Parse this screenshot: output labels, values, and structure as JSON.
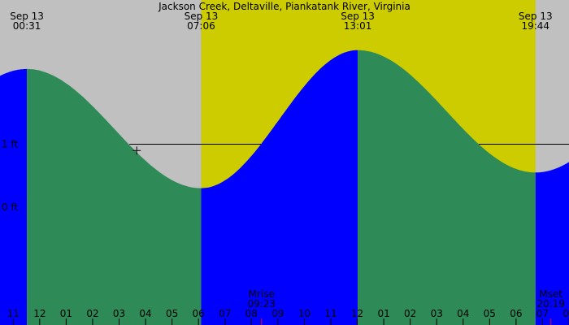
{
  "chart_data": {
    "type": "area",
    "title": "Jackson Creek, Deltaville, Piankatank River, Virginia",
    "time_axis": {
      "start_time": "23:30",
      "end_time": "21:00",
      "hour_ticks": [
        "11",
        "12",
        "01",
        "02",
        "03",
        "04",
        "05",
        "06",
        "07",
        "08",
        "09",
        "10",
        "11",
        "12",
        "01",
        "02",
        "03",
        "04",
        "05",
        "06",
        "07",
        "08",
        "09"
      ]
    },
    "y_axis": {
      "range_ft": [
        -1.7,
        3.3
      ],
      "tick_labels": [
        "1 ft",
        "0 ft"
      ],
      "reference_line_ft": 1.0
    },
    "daylight": {
      "start": "07:06",
      "end": "19:44"
    },
    "events": [
      {
        "date": "Sep 13",
        "time": "00:31",
        "height_ft": 2.2,
        "kind": "high"
      },
      {
        "date": "Sep 13",
        "time": "07:06",
        "height_ft": 0.3,
        "kind": "low"
      },
      {
        "date": "Sep 13",
        "time": "13:01",
        "height_ft": 2.5,
        "kind": "high"
      },
      {
        "date": "Sep 13",
        "time": "19:44",
        "height_ft": 0.55,
        "kind": "low"
      }
    ],
    "moon": {
      "rise": {
        "label": "Mrise",
        "time": "09:23"
      },
      "set": {
        "label": "Mset",
        "time": "20:19"
      }
    },
    "cursor": {
      "time": "04:40",
      "height_ft": 0.9
    },
    "colors": {
      "night": "#c0c0c0",
      "day": "#cccc00",
      "falling": "#2e8b57",
      "rising": "#0000ff",
      "moon_tick": "#ff0000",
      "text": "#000000"
    }
  }
}
